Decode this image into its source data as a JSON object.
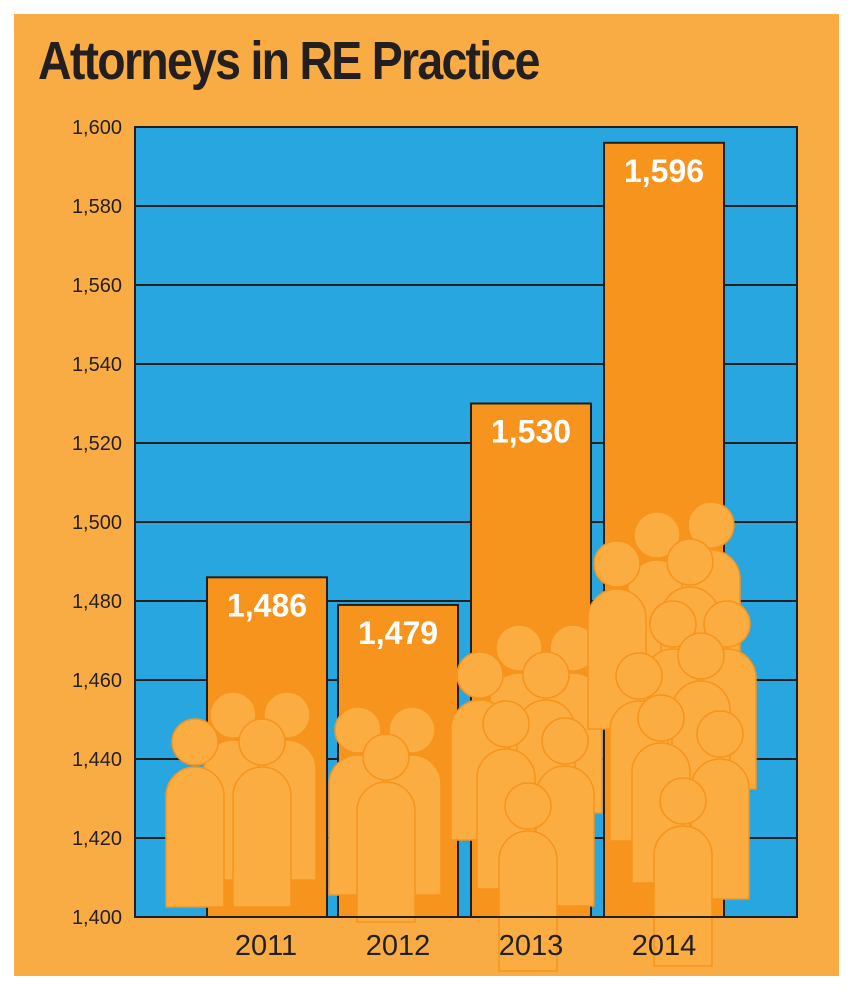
{
  "chart_data": {
    "type": "bar",
    "title": "Attorneys in RE Practice",
    "xlabel": "",
    "ylabel": "",
    "categories": [
      "2011",
      "2012",
      "2013",
      "2014"
    ],
    "values": [
      1486,
      1479,
      1530,
      1596
    ],
    "value_labels": [
      "1,486",
      "1,479",
      "1,530",
      "1,596"
    ],
    "ylim": [
      1400,
      1600
    ],
    "yticks": [
      1400,
      1420,
      1440,
      1460,
      1480,
      1500,
      1520,
      1540,
      1560,
      1580,
      1600
    ],
    "ytick_labels": [
      "1,400",
      "1,420",
      "1,440",
      "1,460",
      "1,480",
      "1,500",
      "1,520",
      "1,540",
      "1,560",
      "1,580",
      "1,600"
    ],
    "grid": true,
    "legend": "none"
  },
  "colors": {
    "frame": "#F9AC43",
    "plot_background": "#27A6E0",
    "bar": "#F7941D",
    "bar_edge": "#231F20",
    "people_icons": "#FBAD41",
    "gridline": "#231F20",
    "text": "#231F20",
    "data_label": "#FFFFFF"
  },
  "decoration": {
    "icon": "person-silhouette-icon",
    "people_per_bar": [
      4,
      3,
      6,
      10
    ]
  }
}
